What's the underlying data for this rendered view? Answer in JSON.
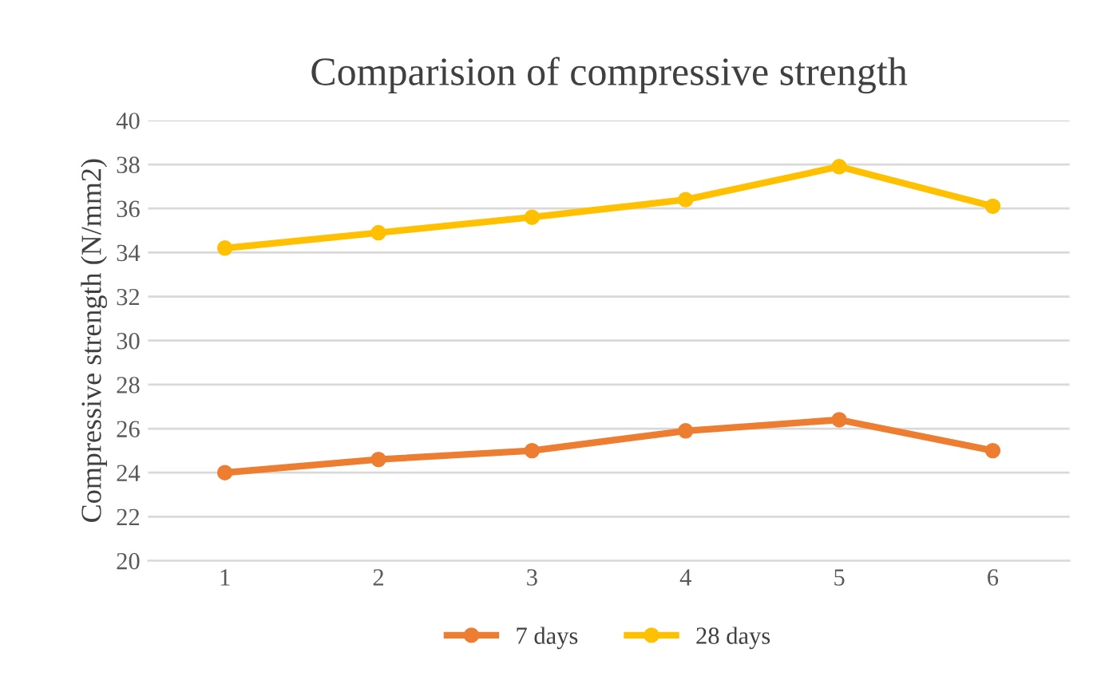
{
  "chart_data": {
    "type": "line",
    "title": "Comparision of compressive strength",
    "ylabel": "Compressive strength (N/mm2)",
    "categories": [
      "1",
      "2",
      "3",
      "4",
      "5",
      "6"
    ],
    "series": [
      {
        "name": "7 days",
        "color": "#ed7d31",
        "values": [
          24.0,
          24.6,
          25.0,
          25.9,
          26.4,
          25.0
        ]
      },
      {
        "name": "28 days",
        "color": "#ffc000",
        "values": [
          34.2,
          34.9,
          35.6,
          36.4,
          37.9,
          36.1
        ]
      }
    ],
    "ylim": [
      20,
      40
    ],
    "yticks": [
      20,
      22,
      24,
      26,
      28,
      30,
      32,
      34,
      36,
      38,
      40
    ],
    "grid": "y",
    "legend": "bottom",
    "marker": "circle",
    "line_style": "solid"
  }
}
